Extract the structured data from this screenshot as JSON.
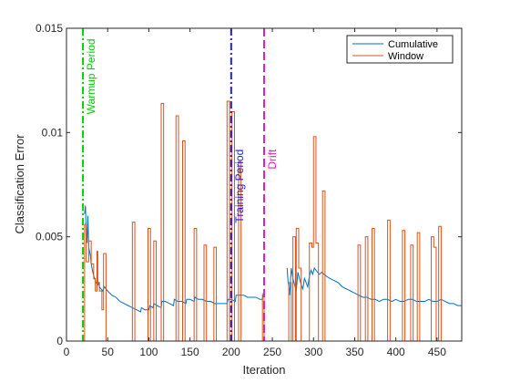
{
  "chart_data": {
    "type": "line",
    "title": "",
    "xlabel": "Iteration",
    "ylabel": "Classification Error",
    "xlim": [
      0,
      480
    ],
    "ylim": [
      0,
      0.015
    ],
    "xticks": [
      0,
      50,
      100,
      150,
      200,
      250,
      300,
      350,
      400,
      450
    ],
    "xtick_labels": [
      "0",
      "50",
      "100",
      "150",
      "200",
      "250",
      "300",
      "350",
      "400",
      "450"
    ],
    "yticks": [
      0,
      0.005,
      0.01,
      0.015
    ],
    "ytick_labels": [
      "0",
      "0.005",
      "0.01",
      "0.015"
    ],
    "grid": false,
    "legend": {
      "position": "top-right",
      "entries": [
        "Cumulative",
        "Window"
      ]
    },
    "series": [
      {
        "name": "Cumulative",
        "color": "#0072BD",
        "points": [
          [
            22,
            0.0061
          ],
          [
            23,
            0.0065
          ],
          [
            24,
            0.0052
          ],
          [
            25,
            0.0047
          ],
          [
            26,
            0.006
          ],
          [
            27,
            0.0045
          ],
          [
            29,
            0.0041
          ],
          [
            30,
            0.0037
          ],
          [
            32,
            0.0033
          ],
          [
            34,
            0.003
          ],
          [
            36,
            0.0028
          ],
          [
            38,
            0.0027
          ],
          [
            39,
            0.0028
          ],
          [
            40,
            0.0026
          ],
          [
            42,
            0.0025
          ],
          [
            44,
            0.0024
          ],
          [
            46,
            0.0026
          ],
          [
            50,
            0.0024
          ],
          [
            55,
            0.0022
          ],
          [
            60,
            0.0021
          ],
          [
            65,
            0.0019
          ],
          [
            70,
            0.0018
          ],
          [
            75,
            0.0017
          ],
          [
            80,
            0.0016
          ],
          [
            85,
            0.0015
          ],
          [
            90,
            0.0014
          ],
          [
            91,
            0.0016
          ],
          [
            95,
            0.0015
          ],
          [
            100,
            0.0015
          ],
          [
            101,
            0.0017
          ],
          [
            105,
            0.0016
          ],
          [
            106,
            0.0018
          ],
          [
            110,
            0.0017
          ],
          [
            115,
            0.0016
          ],
          [
            116,
            0.0019
          ],
          [
            120,
            0.0019
          ],
          [
            125,
            0.0018
          ],
          [
            130,
            0.0017
          ],
          [
            131,
            0.002
          ],
          [
            135,
            0.0019
          ],
          [
            140,
            0.0019
          ],
          [
            145,
            0.0018
          ],
          [
            146,
            0.002
          ],
          [
            150,
            0.002
          ],
          [
            155,
            0.0019
          ],
          [
            156,
            0.0021
          ],
          [
            160,
            0.002
          ],
          [
            165,
            0.002
          ],
          [
            170,
            0.0019
          ],
          [
            175,
            0.0019
          ],
          [
            180,
            0.0018
          ],
          [
            185,
            0.0018
          ],
          [
            190,
            0.0018
          ],
          [
            195,
            0.0018
          ],
          [
            196,
            0.002
          ],
          [
            200,
            0.002
          ],
          [
            205,
            0.0019
          ],
          [
            206,
            0.0022
          ],
          [
            210,
            0.0022
          ],
          [
            215,
            0.0022
          ],
          [
            220,
            0.0021
          ],
          [
            225,
            0.0021
          ],
          [
            230,
            0.0021
          ],
          [
            235,
            0.002
          ],
          [
            238,
            0.002
          ],
          [
            239,
            0.0023
          ],
          [
            240,
            0.0021
          ]
        ]
      },
      {
        "name": "Cumulative",
        "color": "#0072BD",
        "legend": false,
        "points": [
          [
            268,
            0.0035
          ],
          [
            269,
            0.0029
          ],
          [
            270,
            0.0026
          ],
          [
            271,
            0.0022
          ],
          [
            273,
            0.0035
          ],
          [
            275,
            0.003
          ],
          [
            277,
            0.0027
          ],
          [
            279,
            0.0024
          ],
          [
            281,
            0.0033
          ],
          [
            283,
            0.003
          ],
          [
            285,
            0.0027
          ],
          [
            287,
            0.0025
          ],
          [
            289,
            0.003
          ],
          [
            291,
            0.0028
          ],
          [
            293,
            0.0026
          ],
          [
            295,
            0.0031
          ],
          [
            297,
            0.0034
          ],
          [
            299,
            0.0032
          ],
          [
            301,
            0.0035
          ],
          [
            303,
            0.0034
          ],
          [
            305,
            0.0033
          ],
          [
            307,
            0.0032
          ],
          [
            310,
            0.0033
          ],
          [
            313,
            0.0032
          ],
          [
            316,
            0.0031
          ],
          [
            320,
            0.003
          ],
          [
            325,
            0.0029
          ],
          [
            330,
            0.0028
          ],
          [
            335,
            0.0026
          ],
          [
            340,
            0.0025
          ],
          [
            345,
            0.0024
          ],
          [
            350,
            0.0023
          ],
          [
            355,
            0.0022
          ],
          [
            360,
            0.0021
          ],
          [
            365,
            0.0021
          ],
          [
            370,
            0.002
          ],
          [
            375,
            0.002
          ],
          [
            380,
            0.0019
          ],
          [
            385,
            0.002
          ],
          [
            390,
            0.002
          ],
          [
            395,
            0.0019
          ],
          [
            400,
            0.002
          ],
          [
            405,
            0.0019
          ],
          [
            410,
            0.0019
          ],
          [
            415,
            0.002
          ],
          [
            420,
            0.002
          ],
          [
            425,
            0.0019
          ],
          [
            430,
            0.0019
          ],
          [
            435,
            0.0019
          ],
          [
            440,
            0.002
          ],
          [
            445,
            0.0019
          ],
          [
            450,
            0.0019
          ],
          [
            455,
            0.002
          ],
          [
            460,
            0.0019
          ],
          [
            465,
            0.0018
          ],
          [
            470,
            0.0018
          ],
          [
            475,
            0.0017
          ],
          [
            480,
            0.0017
          ]
        ]
      },
      {
        "name": "Window",
        "color": "#D95319",
        "points": [
          [
            22,
            0
          ],
          [
            22,
            0.0056
          ],
          [
            24,
            0.0056
          ],
          [
            24,
            0.0038
          ],
          [
            27,
            0.0038
          ],
          [
            27,
            0.0048
          ],
          [
            30,
            0.0048
          ],
          [
            30,
            0.0037
          ],
          [
            33,
            0.0037
          ],
          [
            33,
            0.003
          ],
          [
            35,
            0.003
          ],
          [
            35,
            0.0024
          ],
          [
            37,
            0.0024
          ],
          [
            37,
            0.0043
          ],
          [
            38,
            0.0043
          ],
          [
            38,
            0.0028
          ],
          [
            40,
            0.0028
          ],
          [
            40,
            0.0024
          ],
          [
            43,
            0.0024
          ],
          [
            43,
            0.0015
          ],
          [
            45,
            0.0015
          ],
          [
            45,
            0.0042
          ],
          [
            48,
            0.0042
          ],
          [
            48,
            0
          ],
          [
            80,
            0
          ],
          [
            80,
            0.0057
          ],
          [
            83,
            0.0057
          ],
          [
            83,
            0
          ],
          [
            99,
            0
          ],
          [
            99,
            0.0054
          ],
          [
            102,
            0.0054
          ],
          [
            102,
            0
          ],
          [
            106,
            0
          ],
          [
            106,
            0.0048
          ],
          [
            109,
            0.0048
          ],
          [
            109,
            0
          ],
          [
            115,
            0
          ],
          [
            115,
            0.0114
          ],
          [
            118,
            0.0114
          ],
          [
            118,
            0
          ],
          [
            133,
            0
          ],
          [
            133,
            0.0108
          ],
          [
            136,
            0.0108
          ],
          [
            136,
            0
          ],
          [
            141,
            0
          ],
          [
            141,
            0.0096
          ],
          [
            144,
            0.0096
          ],
          [
            144,
            0
          ],
          [
            155,
            0
          ],
          [
            155,
            0.0054
          ],
          [
            158,
            0.0054
          ],
          [
            158,
            0
          ],
          [
            167,
            0
          ],
          [
            167,
            0.0046
          ],
          [
            170,
            0.0046
          ],
          [
            170,
            0
          ],
          [
            179,
            0
          ],
          [
            179,
            0.0045
          ],
          [
            182,
            0.0045
          ],
          [
            182,
            0
          ],
          [
            195,
            0
          ],
          [
            195,
            0.0115
          ],
          [
            198,
            0.0115
          ],
          [
            198,
            0
          ],
          [
            201,
            0
          ],
          [
            201,
            0.011
          ],
          [
            204,
            0.011
          ],
          [
            204,
            0
          ],
          [
            209,
            0
          ],
          [
            209,
            0.0086
          ],
          [
            212,
            0.0086
          ],
          [
            212,
            0
          ],
          [
            238,
            0
          ],
          [
            238,
            0.0022
          ],
          [
            240,
            0.0022
          ],
          [
            240,
            0
          ],
          [
            270,
            0
          ],
          [
            270,
            0.0028
          ],
          [
            273,
            0.0028
          ],
          [
            273,
            0
          ],
          [
            275,
            0
          ],
          [
            275,
            0.005
          ],
          [
            278,
            0.005
          ],
          [
            278,
            0
          ],
          [
            279,
            0
          ],
          [
            279,
            0.0054
          ],
          [
            282,
            0.0054
          ],
          [
            282,
            0.0035
          ],
          [
            285,
            0.0035
          ],
          [
            285,
            0
          ],
          [
            295,
            0
          ],
          [
            295,
            0.0047
          ],
          [
            298,
            0.0047
          ],
          [
            298,
            0.0045
          ],
          [
            300,
            0.0045
          ],
          [
            300,
            0.0098
          ],
          [
            303,
            0.0098
          ],
          [
            303,
            0.0047
          ],
          [
            306,
            0.0047
          ],
          [
            306,
            0
          ],
          [
            311,
            0
          ],
          [
            311,
            0.0072
          ],
          [
            314,
            0.0072
          ],
          [
            314,
            0
          ],
          [
            354,
            0
          ],
          [
            354,
            0.0046
          ],
          [
            357,
            0.0046
          ],
          [
            357,
            0
          ],
          [
            363,
            0
          ],
          [
            363,
            0.005
          ],
          [
            366,
            0.005
          ],
          [
            366,
            0
          ],
          [
            371,
            0
          ],
          [
            371,
            0.0054
          ],
          [
            374,
            0.0054
          ],
          [
            374,
            0
          ],
          [
            390,
            0
          ],
          [
            390,
            0.0058
          ],
          [
            393,
            0.0058
          ],
          [
            393,
            0
          ],
          [
            408,
            0
          ],
          [
            408,
            0.0053
          ],
          [
            411,
            0.0053
          ],
          [
            411,
            0
          ],
          [
            418,
            0
          ],
          [
            418,
            0.0046
          ],
          [
            421,
            0.0046
          ],
          [
            421,
            0
          ],
          [
            426,
            0
          ],
          [
            426,
            0.0052
          ],
          [
            429,
            0.0052
          ],
          [
            429,
            0
          ],
          [
            443,
            0
          ],
          [
            443,
            0.005
          ],
          [
            446,
            0.005
          ],
          [
            446,
            0.0045
          ],
          [
            449,
            0.0045
          ],
          [
            449,
            0
          ],
          [
            452,
            0
          ],
          [
            452,
            0.0055
          ],
          [
            455,
            0.0055
          ],
          [
            455,
            0
          ]
        ]
      }
    ],
    "vlines": [
      {
        "x": 20,
        "color": "#00D000",
        "dash": "8,3,2,3",
        "label": "Warmup Period",
        "label_y": 0.0145
      },
      {
        "x": 200,
        "color": "#2020E0",
        "dash": "8,3,2,3",
        "label": "Training Period",
        "label_y": 0.0092
      },
      {
        "x": 240,
        "color": "#E020C0",
        "dash": "9,4",
        "label": "Drift",
        "label_y": 0.0092
      }
    ]
  }
}
